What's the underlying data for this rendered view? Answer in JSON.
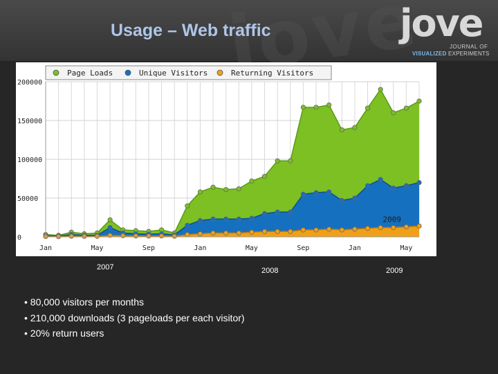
{
  "slide": {
    "title": "Usage – Web traffic",
    "watermark": "jove"
  },
  "logo": {
    "word": "jove",
    "line1": "JOURNAL OF",
    "line2_prefix": "VISUALIZED",
    "line2_suffix": "EXPERIMENTS"
  },
  "colors": {
    "page_loads": "#7cc024",
    "unique_visitors": "#1670c0",
    "returning_visitors": "#f0a018",
    "header_bg": "#3a3a3a",
    "title": "#aec6e8"
  },
  "chart_data": {
    "type": "area",
    "title": "",
    "legend": [
      "Page Loads",
      "Unique Visitors",
      "Returning Visitors"
    ],
    "legend_position": "top",
    "y_ticks": [
      "0",
      "50000",
      "100000",
      "150000",
      "200000"
    ],
    "ylim": [
      0,
      200000
    ],
    "x_tick_labels": [
      "Jan",
      "May",
      "Sep",
      "Jan",
      "May",
      "Sep",
      "Jan",
      "May"
    ],
    "x_tick_index": [
      0,
      4,
      8,
      12,
      16,
      20,
      24,
      28
    ],
    "years_below": [
      "2007",
      "2008",
      "2009"
    ],
    "inline_label": "2009",
    "series": [
      {
        "name": "Page Loads",
        "values": [
          3000,
          2000,
          6000,
          4000,
          5000,
          22000,
          9000,
          8000,
          7000,
          9000,
          5000,
          40000,
          58000,
          64000,
          61000,
          62000,
          72000,
          78000,
          98000,
          98000,
          167000,
          167000,
          170000,
          138000,
          141000,
          166000,
          190000,
          160000,
          166000,
          175000
        ]
      },
      {
        "name": "Unique Visitors",
        "values": [
          1500,
          1000,
          3000,
          2000,
          2000,
          12000,
          5000,
          4000,
          3500,
          4000,
          2500,
          15000,
          21000,
          23000,
          23000,
          23000,
          24000,
          30000,
          32000,
          32000,
          55000,
          57000,
          58000,
          47000,
          50000,
          66000,
          74000,
          63000,
          66000,
          70000
        ]
      },
      {
        "name": "Returning Visitors",
        "values": [
          500,
          300,
          800,
          700,
          700,
          2000,
          1500,
          1200,
          1000,
          1200,
          800,
          3000,
          4000,
          5000,
          5000,
          5000,
          6000,
          7000,
          7000,
          7000,
          9000,
          9000,
          10000,
          9000,
          10000,
          11000,
          12000,
          12000,
          13000,
          14000
        ]
      }
    ]
  },
  "bullets": [
    "• 80,000 visitors per months",
    "• 210,000 downloads (3 pageloads per each visitor)",
    "• 20% return users"
  ]
}
